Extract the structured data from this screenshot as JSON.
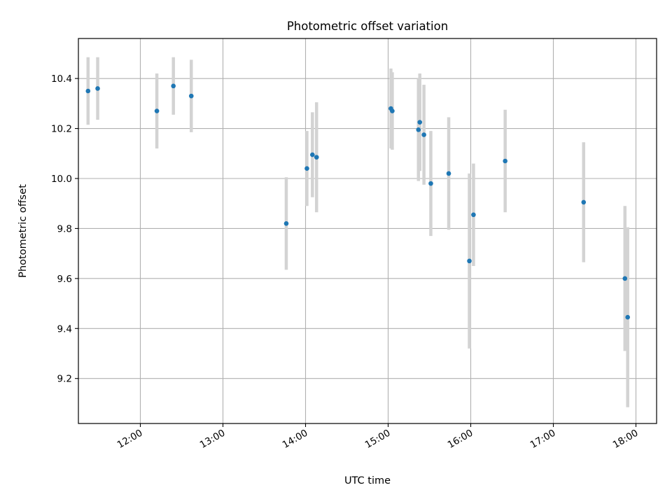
{
  "chart_data": {
    "type": "scatter",
    "title": "Photometric offset variation",
    "xlabel": "UTC time",
    "ylabel": "Photometric offset",
    "xlim": [
      "11:15",
      "18:15"
    ],
    "ylim": [
      9.02,
      10.56
    ],
    "grid": true,
    "x_ticks": [
      "12:00",
      "13:00",
      "14:00",
      "15:00",
      "16:00",
      "17:00",
      "18:00"
    ],
    "y_ticks": [
      "9.2",
      "9.4",
      "9.6",
      "9.8",
      "10.0",
      "10.2",
      "10.4"
    ],
    "colors": {
      "point": "#1f77b4",
      "errorbar": "#d3d3d3",
      "grid": "#b0b0b0"
    },
    "series": [
      {
        "points": [
          {
            "x": "11:22",
            "y": 10.35,
            "err": 0.135
          },
          {
            "x": "11:29",
            "y": 10.36,
            "err": 0.125
          },
          {
            "x": "12:12",
            "y": 10.27,
            "err": 0.15
          },
          {
            "x": "12:24",
            "y": 10.37,
            "err": 0.115
          },
          {
            "x": "12:37",
            "y": 10.33,
            "err": 0.145
          },
          {
            "x": "13:46",
            "y": 9.82,
            "err": 0.185
          },
          {
            "x": "14:01",
            "y": 10.04,
            "err": 0.15
          },
          {
            "x": "14:05",
            "y": 10.095,
            "err": 0.17
          },
          {
            "x": "14:08",
            "y": 10.085,
            "err": 0.22
          },
          {
            "x": "15:02",
            "y": 10.28,
            "err": 0.16
          },
          {
            "x": "15:03",
            "y": 10.27,
            "err": 0.155
          },
          {
            "x": "15:22",
            "y": 10.195,
            "err": 0.205
          },
          {
            "x": "15:23",
            "y": 10.225,
            "err": 0.195
          },
          {
            "x": "15:26",
            "y": 10.175,
            "err": 0.2
          },
          {
            "x": "15:31",
            "y": 9.98,
            "err": 0.21
          },
          {
            "x": "15:44",
            "y": 10.02,
            "err": 0.225
          },
          {
            "x": "15:59",
            "y": 9.67,
            "err": 0.35
          },
          {
            "x": "16:02",
            "y": 9.855,
            "err": 0.205
          },
          {
            "x": "16:25",
            "y": 10.07,
            "err": 0.205
          },
          {
            "x": "17:22",
            "y": 9.905,
            "err": 0.24
          },
          {
            "x": "17:52",
            "y": 9.6,
            "err": 0.29
          },
          {
            "x": "17:54",
            "y": 9.445,
            "err": 0.36
          }
        ]
      }
    ]
  }
}
